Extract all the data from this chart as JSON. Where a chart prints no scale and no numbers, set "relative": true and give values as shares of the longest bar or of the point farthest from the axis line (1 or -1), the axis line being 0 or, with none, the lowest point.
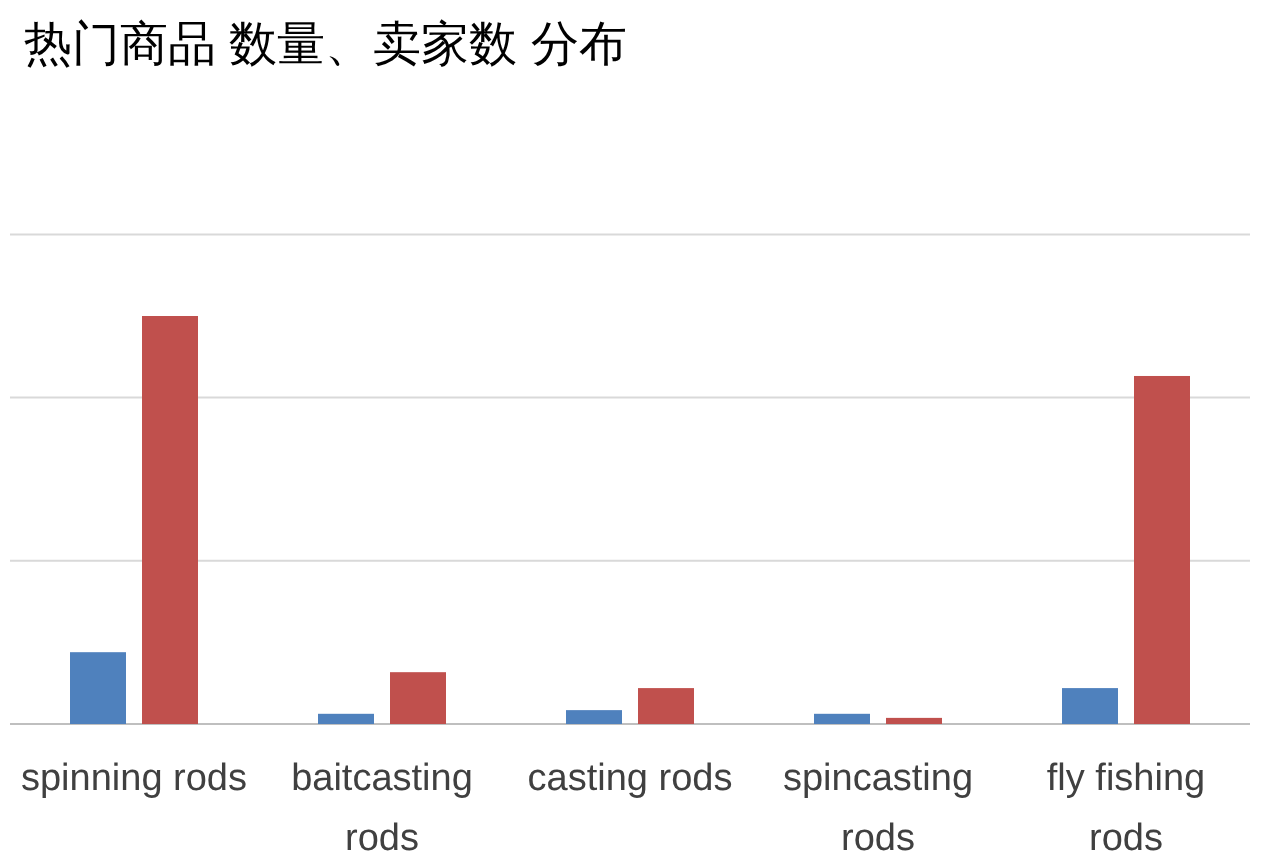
{
  "chart_data": {
    "type": "bar",
    "title": "热门商品 数量、卖家数 分布",
    "relative": true,
    "ref_lines": [
      {
        "axis": "y",
        "value": 0.4,
        "color": "#d9d9d9"
      },
      {
        "axis": "y",
        "value": 0.8,
        "color": "#d9d9d9"
      },
      {
        "axis": "y",
        "value": 1.2,
        "color": "#d9d9d9"
      }
    ],
    "categories": [
      "spinning rods",
      "baitcasting rods",
      "casting rods",
      "spincasting rods",
      "fly fishing rods"
    ],
    "series": [
      {
        "color": "#4f81bd",
        "values": [
          0.176,
          0.025,
          0.034,
          0.025,
          0.088
        ]
      },
      {
        "color": "#c0504d",
        "values": [
          1,
          0.127,
          0.088,
          0.015,
          0.853
        ]
      }
    ]
  }
}
